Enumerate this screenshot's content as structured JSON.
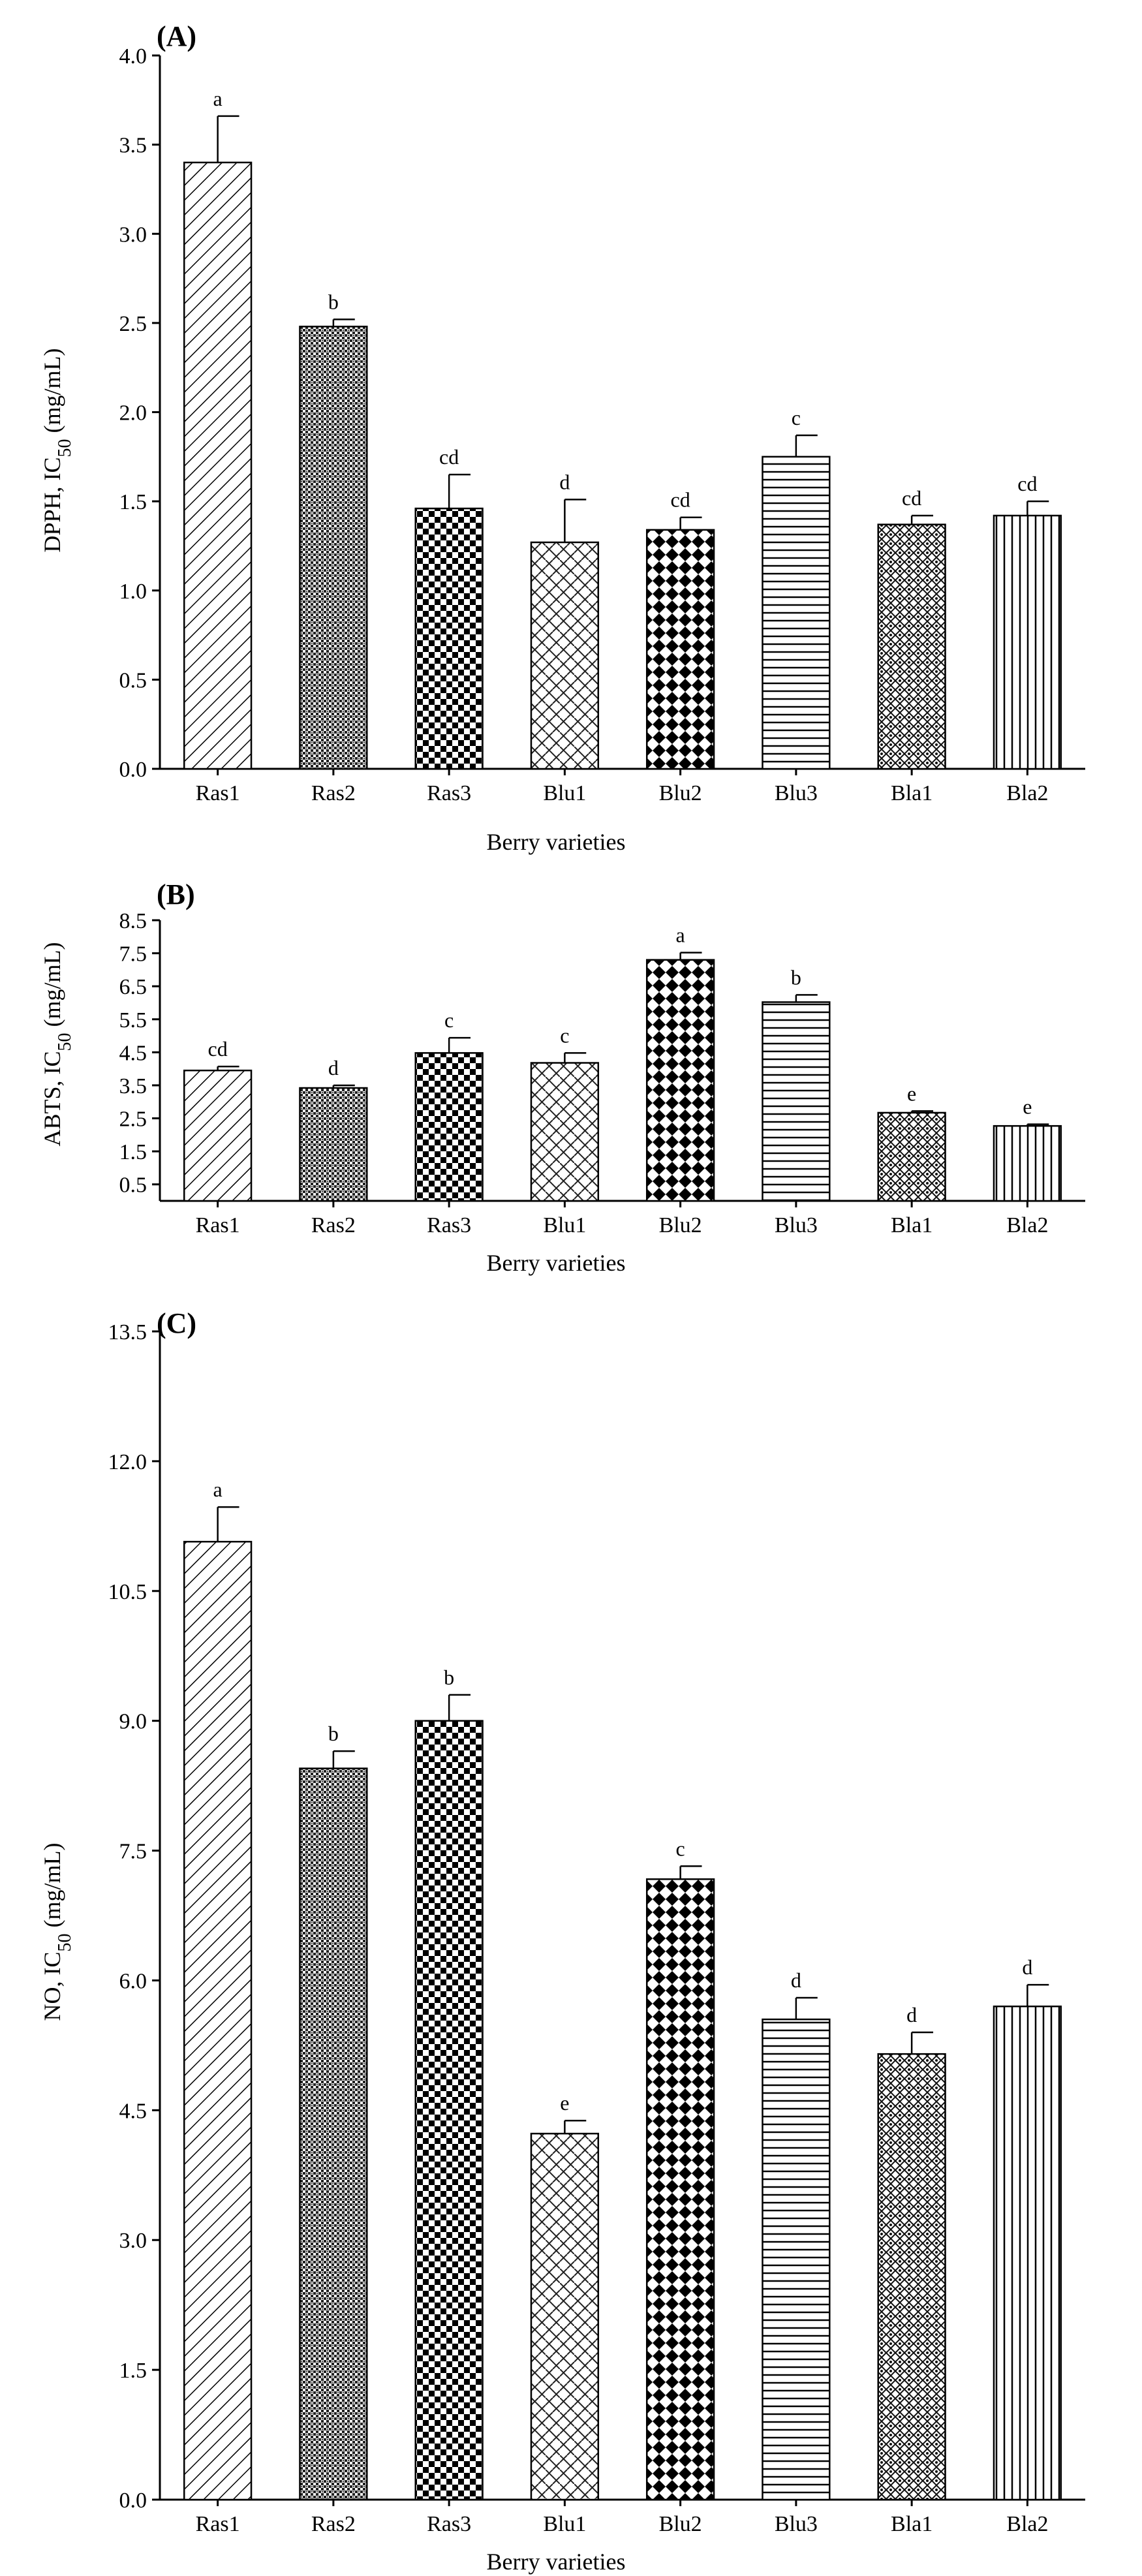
{
  "chart_data": [
    {
      "type": "bar",
      "panel_label": "(A)",
      "title": "",
      "xlabel": "Berry varieties",
      "ylabel_main": "DPPH, IC",
      "ylabel_sub": "50",
      "ylabel_unit": " (mg/mL)",
      "categories": [
        "Ras1",
        "Ras2",
        "Ras3",
        "Blu1",
        "Blu2",
        "Blu3",
        "Bla1",
        "Bla2"
      ],
      "values": [
        3.4,
        2.48,
        1.46,
        1.27,
        1.34,
        1.75,
        1.37,
        1.42
      ],
      "errors": [
        0.26,
        0.04,
        0.19,
        0.24,
        0.07,
        0.12,
        0.05,
        0.08
      ],
      "significance": [
        "a",
        "b",
        "cd",
        "d",
        "cd",
        "c",
        "cd",
        "cd"
      ],
      "ylim": [
        0.0,
        4.0
      ],
      "ytick_values": [
        0.0,
        0.5,
        1.0,
        1.5,
        2.0,
        2.5,
        3.0,
        3.5,
        4.0
      ],
      "ytick_labels": [
        "0.0",
        "0.5",
        "1.0",
        "1.5",
        "2.0",
        "2.5",
        "3.0",
        "3.5",
        "4.0"
      ],
      "grid": false
    },
    {
      "type": "bar",
      "panel_label": "(B)",
      "title": "",
      "xlabel": "Berry varieties",
      "ylabel_main": "ABTS, IC",
      "ylabel_sub": "50",
      "ylabel_unit": " (mg/mL)",
      "categories": [
        "Ras1",
        "Ras2",
        "Ras3",
        "Blu1",
        "Blu2",
        "Blu3",
        "Bla1",
        "Bla2"
      ],
      "values": [
        3.95,
        3.42,
        4.48,
        4.18,
        7.3,
        6.02,
        2.67,
        2.27
      ],
      "errors": [
        0.12,
        0.08,
        0.46,
        0.3,
        0.22,
        0.22,
        0.05,
        0.05
      ],
      "significance": [
        "cd",
        "d",
        "c",
        "c",
        "a",
        "b",
        "e",
        "e"
      ],
      "ylim": [
        0.0,
        8.5
      ],
      "ytick_values": [
        0.5,
        1.5,
        2.5,
        3.5,
        4.5,
        5.5,
        6.5,
        7.5,
        8.5
      ],
      "ytick_labels": [
        "0.5",
        "1.5",
        "2.5",
        "3.5",
        "4.5",
        "5.5",
        "6.5",
        "7.5",
        "8.5"
      ],
      "grid": false
    },
    {
      "type": "bar",
      "panel_label": "(C)",
      "title": "",
      "xlabel": "Berry varieties",
      "ylabel_main": "NO, IC",
      "ylabel_sub": "50",
      "ylabel_unit": " (mg/mL)",
      "categories": [
        "Ras1",
        "Ras2",
        "Ras3",
        "Blu1",
        "Blu2",
        "Blu3",
        "Bla1",
        "Bla2"
      ],
      "values": [
        11.07,
        8.45,
        9.0,
        4.23,
        7.17,
        5.55,
        5.15,
        5.7
      ],
      "errors": [
        0.4,
        0.2,
        0.3,
        0.15,
        0.15,
        0.25,
        0.25,
        0.25
      ],
      "significance": [
        "a",
        "b",
        "b",
        "e",
        "c",
        "d",
        "d",
        "d"
      ],
      "ylim": [
        0.0,
        13.5
      ],
      "ytick_values": [
        0.0,
        1.5,
        3.0,
        4.5,
        6.0,
        7.5,
        9.0,
        10.5,
        12.0,
        13.5
      ],
      "ytick_labels": [
        "0.0",
        "1.5",
        "3.0",
        "4.5",
        "6.0",
        "7.5",
        "9.0",
        "10.5",
        "12.0",
        "13.5"
      ],
      "grid": false
    }
  ]
}
